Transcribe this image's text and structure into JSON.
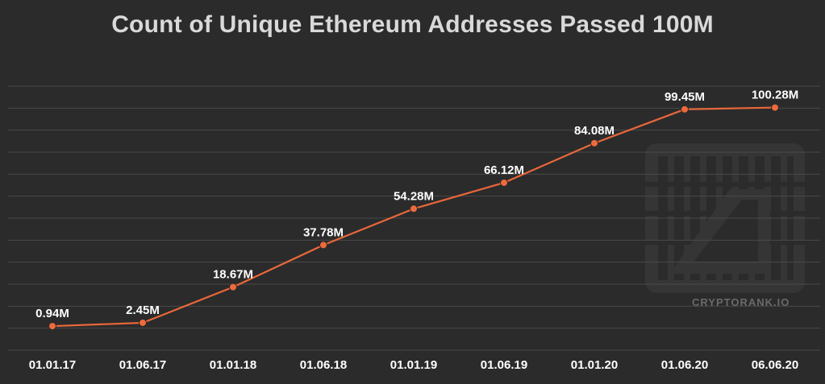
{
  "chart_data": {
    "type": "line",
    "title": "Count of Unique Ethereum Addresses Passed 100M",
    "categories": [
      "01.01.17",
      "01.06.17",
      "01.01.18",
      "01.06.18",
      "01.01.19",
      "01.06.19",
      "01.01.20",
      "01.06.20",
      "06.06.20"
    ],
    "values": [
      0.94,
      2.45,
      18.67,
      37.78,
      54.28,
      66.12,
      84.08,
      99.45,
      100.28
    ],
    "data_labels": [
      "0.94M",
      "2.45M",
      "18.67M",
      "37.78M",
      "54.28M",
      "66.12M",
      "84.08M",
      "99.45M",
      "100.28M"
    ],
    "ylim": [
      -10,
      110
    ],
    "grid": true,
    "legend": "none",
    "line_color": "#e8673a",
    "marker_color": "#ee6a3c"
  },
  "watermark": {
    "text": "CRYPTORANK.IO",
    "logo_icon": "cryptorank-logo-icon"
  },
  "colors": {
    "background": "#2b2b2b",
    "grid": "#4a4a4a",
    "title": "#d9d9d9",
    "label": "#ffffff"
  }
}
